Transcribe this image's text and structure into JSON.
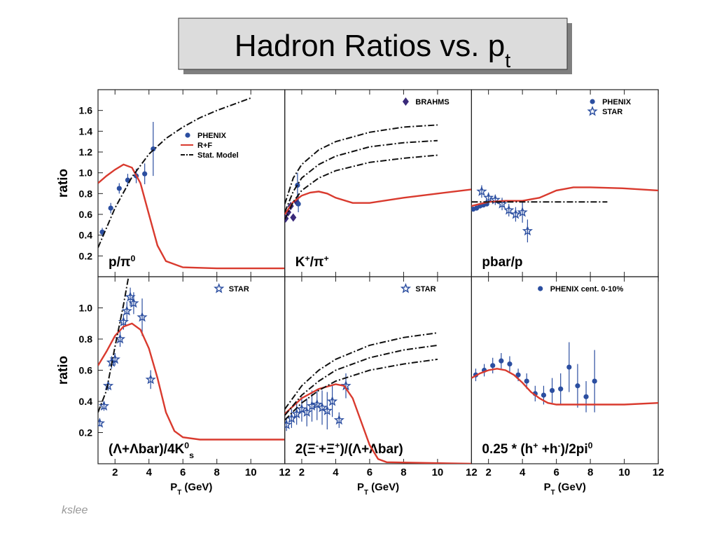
{
  "title": [
    {
      "t": "Hadron Ratios vs. p"
    },
    {
      "t": "t",
      "pos": "sub"
    }
  ],
  "footer": "kslee",
  "chart_data": [
    {
      "type": "line",
      "xlim": [
        1,
        12
      ],
      "ylim": [
        0,
        1.8
      ],
      "xticks": [
        2,
        4,
        6,
        8,
        10,
        12
      ],
      "yticks": [
        0.2,
        0.4,
        0.6,
        0.8,
        {
          "value": 1,
          "label": "1.0"
        },
        1.2,
        1.4,
        1.6
      ],
      "ylabel": "ratio",
      "label": [
        {
          "t": "p/π"
        },
        {
          "t": "0",
          "pos": "sup"
        }
      ],
      "legend": "center right",
      "series": [
        {
          "name": "PHENIX",
          "style": "points",
          "color": "#2b4ea0",
          "x": [
            1.25,
            1.75,
            2.25,
            2.75,
            3.25,
            3.75,
            4.25
          ],
          "values": [
            0.43,
            0.66,
            0.85,
            0.93,
            0.97,
            0.99,
            1.23
          ],
          "errors": [
            0.04,
            0.05,
            0.05,
            0.06,
            0.07,
            0.1,
            0.26
          ]
        },
        {
          "name": "R+F",
          "style": "line",
          "color": "#d93a2e",
          "x": [
            1,
            1.5,
            2,
            2.5,
            3,
            3.5,
            4,
            4.5,
            5,
            6,
            8,
            12
          ],
          "values": [
            0.9,
            0.97,
            1.03,
            1.08,
            1.05,
            0.9,
            0.6,
            0.3,
            0.15,
            0.09,
            0.08,
            0.08
          ]
        },
        {
          "name": "Stat. Model",
          "style": "dashdot",
          "color": "#111111",
          "x": [
            1,
            1.5,
            2,
            3,
            4,
            5,
            6,
            7,
            8,
            9,
            10
          ],
          "values": [
            0.28,
            0.47,
            0.66,
            0.96,
            1.18,
            1.33,
            1.44,
            1.53,
            1.6,
            1.66,
            1.72
          ]
        }
      ]
    },
    {
      "type": "line",
      "xlim": [
        1,
        12
      ],
      "ylim": [
        0,
        1.8
      ],
      "xticks": [
        2,
        4,
        6,
        8,
        10,
        12
      ],
      "label": [
        {
          "t": "K"
        },
        {
          "t": "+",
          "pos": "sup"
        },
        {
          "t": "/π"
        },
        {
          "t": "+",
          "pos": "sup"
        }
      ],
      "legend": "upper right",
      "series": [
        {
          "name": "BRAHMS",
          "style": "diamonds",
          "color": "#3a2a7a",
          "x": [
            1.05,
            1.2,
            1.35,
            1.5,
            1.7
          ],
          "values": [
            0.56,
            0.62,
            0.68,
            0.57,
            0.72
          ]
        },
        {
          "style": "points",
          "color": "#2b4ea0",
          "x": [
            1.75,
            1.8
          ],
          "values": [
            0.88,
            0.7
          ],
          "errors": [
            0.12,
            0.08
          ]
        },
        {
          "style": "line",
          "color": "#d93a2e",
          "x": [
            1,
            1.5,
            2,
            2.5,
            3,
            3.5,
            4,
            5,
            6,
            8,
            10,
            12
          ],
          "values": [
            0.6,
            0.72,
            0.78,
            0.81,
            0.82,
            0.8,
            0.76,
            0.71,
            0.71,
            0.76,
            0.8,
            0.84
          ]
        },
        {
          "style": "dashdot",
          "color": "#111111",
          "x": [
            1,
            1.5,
            2,
            3,
            4,
            6,
            8,
            10
          ],
          "values": [
            0.7,
            0.95,
            1.08,
            1.22,
            1.3,
            1.39,
            1.44,
            1.46
          ]
        },
        {
          "style": "dashdot",
          "color": "#111111",
          "x": [
            1,
            1.5,
            2,
            3,
            4,
            6,
            8,
            10
          ],
          "values": [
            0.62,
            0.82,
            0.95,
            1.08,
            1.16,
            1.25,
            1.29,
            1.31
          ]
        },
        {
          "style": "dashdot",
          "color": "#111111",
          "x": [
            1,
            1.5,
            2,
            3,
            4,
            6,
            8,
            10
          ],
          "values": [
            0.55,
            0.72,
            0.83,
            0.95,
            1.02,
            1.1,
            1.14,
            1.17
          ]
        }
      ]
    },
    {
      "type": "line",
      "xlim": [
        1,
        12
      ],
      "ylim": [
        0,
        1.8
      ],
      "xticks": [
        2,
        4,
        6,
        8,
        10,
        12
      ],
      "label": [
        {
          "t": "pbar/p"
        }
      ],
      "legend": "upper right",
      "series": [
        {
          "name": "PHENIX",
          "style": "points",
          "color": "#2b4ea0",
          "x": [
            1.1,
            1.3,
            1.5,
            1.7,
            1.9
          ],
          "values": [
            0.65,
            0.66,
            0.68,
            0.69,
            0.7
          ]
        },
        {
          "name": "STAR",
          "style": "stars",
          "color": "#2b4ea0",
          "x": [
            1.6,
            2,
            2.4,
            2.8,
            3.2,
            3.6,
            4,
            4.3
          ],
          "values": [
            0.82,
            0.76,
            0.74,
            0.7,
            0.64,
            0.6,
            0.62,
            0.44
          ],
          "errors": [
            0.06,
            0.05,
            0.05,
            0.06,
            0.06,
            0.07,
            0.1,
            0.11
          ]
        },
        {
          "style": "line",
          "color": "#d93a2e",
          "x": [
            1,
            2,
            3,
            4,
            5,
            6,
            7,
            8,
            10,
            12
          ],
          "values": [
            0.68,
            0.72,
            0.73,
            0.73,
            0.76,
            0.83,
            0.86,
            0.86,
            0.85,
            0.83
          ]
        },
        {
          "style": "dashdot",
          "color": "#111111",
          "x": [
            1,
            9
          ],
          "values": [
            0.72,
            0.72
          ]
        }
      ]
    },
    {
      "type": "line",
      "xlim": [
        1,
        12
      ],
      "ylim": [
        0,
        1.2
      ],
      "xticks": [
        2,
        4,
        6,
        8,
        10,
        12
      ],
      "yticks": [
        0.2,
        0.4,
        0.6,
        0.8,
        {
          "value": 1,
          "label": "1.0"
        }
      ],
      "ylabel": "ratio",
      "xlabel": [
        {
          "t": "P"
        },
        {
          "t": "T",
          "pos": "sub"
        },
        {
          "t": " (GeV)"
        }
      ],
      "label": [
        {
          "t": "(Λ+Λbar)/4K"
        },
        {
          "t": "0",
          "pos": "sup"
        },
        {
          "t": "s",
          "pos": "sub"
        }
      ],
      "legend": "upper right",
      "series": [
        {
          "name": "STAR",
          "style": "stars",
          "color": "#2b4ea0",
          "x": [
            1.1,
            1.35,
            1.6,
            1.8,
            2.0,
            2.3,
            2.5,
            2.7,
            2.9,
            3.1,
            3.6,
            4.1
          ],
          "values": [
            0.26,
            0.37,
            0.5,
            0.65,
            0.67,
            0.8,
            0.91,
            0.98,
            1.07,
            1.03,
            0.94,
            0.54
          ],
          "errors": [
            0.02,
            0.03,
            0.03,
            0.04,
            0.04,
            0.05,
            0.05,
            0.06,
            0.06,
            0.07,
            0.12,
            0.06
          ]
        },
        {
          "style": "line",
          "color": "#d93a2e",
          "x": [
            1,
            1.5,
            2,
            2.5,
            3,
            3.5,
            4,
            4.5,
            5,
            5.5,
            6,
            7,
            12
          ],
          "values": [
            0.63,
            0.72,
            0.82,
            0.88,
            0.9,
            0.86,
            0.74,
            0.55,
            0.33,
            0.21,
            0.17,
            0.155,
            0.155
          ]
        },
        {
          "style": "dashdot",
          "color": "#111111",
          "x": [
            1,
            1.5,
            2,
            2.5,
            2.8
          ],
          "values": [
            0.33,
            0.47,
            0.75,
            1.02,
            1.2
          ]
        }
      ]
    },
    {
      "type": "line",
      "xlim": [
        1,
        12
      ],
      "ylim": [
        0,
        1.2
      ],
      "xticks": [
        2,
        4,
        6,
        8,
        10,
        12
      ],
      "xlabel": [
        {
          "t": "P"
        },
        {
          "t": "T",
          "pos": "sub"
        },
        {
          "t": " (GeV)"
        }
      ],
      "label": [
        {
          "t": "2(Ξ"
        },
        {
          "t": "-",
          "pos": "sup"
        },
        {
          "t": "+Ξ"
        },
        {
          "t": "+",
          "pos": "sup"
        },
        {
          "t": ")/(Λ+Λbar)"
        }
      ],
      "legend": "upper right",
      "series": [
        {
          "name": "STAR",
          "style": "stars",
          "color": "#2b4ea0",
          "x": [
            1.1,
            1.4,
            1.7,
            2.0,
            2.3,
            2.6,
            2.9,
            3.2,
            3.5,
            3.8,
            4.2,
            4.6
          ],
          "values": [
            0.25,
            0.29,
            0.32,
            0.35,
            0.33,
            0.37,
            0.38,
            0.36,
            0.34,
            0.4,
            0.28,
            0.5
          ],
          "errors": [
            0.04,
            0.06,
            0.07,
            0.08,
            0.09,
            0.1,
            0.1,
            0.11,
            0.12,
            0.1,
            0.05,
            0.08
          ]
        },
        {
          "style": "line",
          "color": "#d93a2e",
          "x": [
            1,
            2,
            3,
            4,
            4.5,
            5,
            5.5,
            6,
            6.5,
            7,
            12
          ],
          "values": [
            0.32,
            0.42,
            0.48,
            0.51,
            0.5,
            0.42,
            0.27,
            0.12,
            0.03,
            0.01,
            0
          ]
        },
        {
          "style": "dashdot",
          "color": "#111111",
          "x": [
            1,
            2,
            3,
            4,
            6,
            8,
            10
          ],
          "values": [
            0.35,
            0.5,
            0.6,
            0.67,
            0.76,
            0.81,
            0.84
          ]
        },
        {
          "style": "dashdot",
          "color": "#111111",
          "x": [
            1,
            2,
            3,
            4,
            6,
            8,
            10
          ],
          "values": [
            0.31,
            0.44,
            0.53,
            0.6,
            0.68,
            0.73,
            0.76
          ]
        },
        {
          "style": "dashdot",
          "color": "#111111",
          "x": [
            1,
            2,
            3,
            4,
            6,
            8,
            10
          ],
          "values": [
            0.28,
            0.39,
            0.47,
            0.53,
            0.6,
            0.64,
            0.67
          ]
        }
      ]
    },
    {
      "type": "line",
      "xlim": [
        1,
        12
      ],
      "ylim": [
        0,
        1.2
      ],
      "xticks": [
        2,
        4,
        6,
        8,
        10,
        12
      ],
      "xlabel": [
        {
          "t": "P"
        },
        {
          "t": "T",
          "pos": "sub"
        },
        {
          "t": " (GeV)"
        }
      ],
      "label": [
        {
          "t": "0.25 * (h"
        },
        {
          "t": "+",
          "pos": "sup"
        },
        {
          "t": " +h"
        },
        {
          "t": "-",
          "pos": "sup"
        },
        {
          "t": ")/2pi"
        },
        {
          "t": "0",
          "pos": "sup"
        }
      ],
      "legend": "upper right",
      "series": [
        {
          "name": "PHENIX cent. 0-10%",
          "style": "points",
          "color": "#2b4ea0",
          "x": [
            1.25,
            1.75,
            2.25,
            2.75,
            3.25,
            3.75,
            4.25,
            4.75,
            5.25,
            5.75,
            6.25,
            6.75,
            7.25,
            7.75,
            8.25
          ],
          "values": [
            0.57,
            0.6,
            0.63,
            0.66,
            0.64,
            0.57,
            0.53,
            0.45,
            0.44,
            0.47,
            0.48,
            0.62,
            0.5,
            0.43,
            0.53
          ],
          "errors": [
            0.04,
            0.04,
            0.05,
            0.05,
            0.05,
            0.04,
            0.05,
            0.05,
            0.06,
            0.08,
            0.1,
            0.16,
            0.14,
            0.1,
            0.2
          ]
        },
        {
          "style": "line",
          "color": "#d93a2e",
          "x": [
            1,
            1.5,
            2,
            2.5,
            3,
            3.5,
            4,
            4.5,
            5,
            5.5,
            6,
            8,
            10,
            12
          ],
          "values": [
            0.55,
            0.58,
            0.6,
            0.61,
            0.6,
            0.57,
            0.52,
            0.46,
            0.42,
            0.39,
            0.38,
            0.38,
            0.38,
            0.39
          ]
        }
      ]
    }
  ]
}
